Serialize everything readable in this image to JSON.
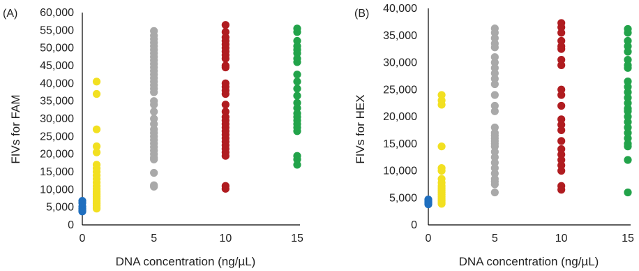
{
  "chart_data": [
    {
      "type": "scatter",
      "panel_label": "(A)",
      "title": "",
      "xlabel": "DNA concentration (ng/µL)",
      "ylabel": "FIVs  for FAM",
      "xlim": [
        0,
        15
      ],
      "ylim": [
        0,
        60000
      ],
      "x_ticks": [
        "0",
        "5",
        "10",
        "15"
      ],
      "y_ticks": [
        "0",
        "5,000",
        "10,000",
        "15,000",
        "20,000",
        "25,000",
        "30,000",
        "35,000",
        "40,000",
        "45,000",
        "50,000",
        "55,000",
        "60,000"
      ],
      "grid": false,
      "legend": "none",
      "series": [
        {
          "x": 0,
          "color": "#1f6fbf",
          "values": [
            6800,
            6200,
            5200,
            4600,
            4100,
            3800
          ]
        },
        {
          "x": 1,
          "color": "#f2e021",
          "values": [
            40500,
            37000,
            27000,
            22200,
            20500,
            17000,
            16000,
            15000,
            14000,
            13000,
            12000,
            11000,
            10200,
            9500,
            9000,
            8500,
            8000,
            7500,
            7000,
            6500,
            6000,
            5500,
            5000,
            4600
          ]
        },
        {
          "x": 5,
          "color": "#a9a9a9",
          "values": [
            54800,
            53500,
            52500,
            51500,
            50500,
            49500,
            48500,
            47500,
            46500,
            45500,
            44500,
            43500,
            42500,
            41500,
            40500,
            39500,
            38500,
            37500,
            35000,
            34000,
            32000,
            30000,
            28500,
            27000,
            26000,
            25000,
            24000,
            23000,
            22000,
            21000,
            20000,
            19000,
            18500,
            14700,
            11200,
            10800
          ]
        },
        {
          "x": 10,
          "color": "#b01c20",
          "values": [
            56500,
            54500,
            53000,
            52000,
            51000,
            50000,
            49000,
            48000,
            47000,
            45000,
            44500,
            40000,
            39000,
            38000,
            37000,
            34000,
            32000,
            30500,
            29500,
            28500,
            27500,
            26500,
            25500,
            24500,
            23500,
            22500,
            21500,
            20500,
            19500,
            11000,
            10200
          ]
        },
        {
          "x": 15,
          "color": "#22a34a",
          "values": [
            55500,
            54500,
            52000,
            50500,
            49500,
            48500,
            47000,
            46000,
            42500,
            40500,
            38500,
            36500,
            34500,
            33000,
            31500,
            30500,
            29500,
            28500,
            27500,
            26500,
            19500,
            18500,
            17000
          ]
        }
      ]
    },
    {
      "type": "scatter",
      "panel_label": "(B)",
      "title": "",
      "xlabel": "DNA concentration (ng/µL)",
      "ylabel": "FIVs  for HEX",
      "xlim": [
        0,
        15
      ],
      "ylim": [
        0,
        40000
      ],
      "x_ticks": [
        "0",
        "5",
        "10",
        "15"
      ],
      "y_ticks": [
        "0",
        "5,000",
        "10,000",
        "15,000",
        "20,000",
        "25,000",
        "30,000",
        "35,000",
        "40,000"
      ],
      "grid": false,
      "legend": "none",
      "series": [
        {
          "x": 0,
          "color": "#1f6fbf",
          "values": [
            4700,
            4400,
            4200,
            4000,
            3800
          ]
        },
        {
          "x": 1,
          "color": "#f2e021",
          "values": [
            24000,
            23000,
            22200,
            14500,
            10500,
            10000,
            8500,
            7800,
            7200,
            6800,
            6400,
            6000,
            5600,
            5200,
            4800,
            4500,
            4200,
            3900
          ]
        },
        {
          "x": 5,
          "color": "#a9a9a9",
          "values": [
            36300,
            35500,
            34500,
            33500,
            32800,
            31000,
            30000,
            29000,
            28000,
            27000,
            26000,
            24000,
            22000,
            21000,
            18000,
            17000,
            16500,
            16000,
            15500,
            15000,
            14500,
            13500,
            12500,
            11500,
            10500,
            9500,
            8500,
            8000,
            7500,
            6000
          ]
        },
        {
          "x": 10,
          "color": "#b01c20",
          "values": [
            37300,
            36500,
            35500,
            34000,
            33000,
            32500,
            30500,
            29500,
            25000,
            24000,
            22000,
            19500,
            18500,
            17500,
            15500,
            14000,
            13000,
            12000,
            11000,
            10000,
            7200,
            6500
          ]
        },
        {
          "x": 15,
          "color": "#22a34a",
          "values": [
            36200,
            35500,
            34000,
            33000,
            32000,
            30500,
            29500,
            29000,
            26500,
            25500,
            24500,
            23500,
            22500,
            21500,
            21000,
            20000,
            19000,
            18000,
            17000,
            16000,
            15000,
            14500,
            12000,
            6000
          ]
        }
      ]
    }
  ]
}
